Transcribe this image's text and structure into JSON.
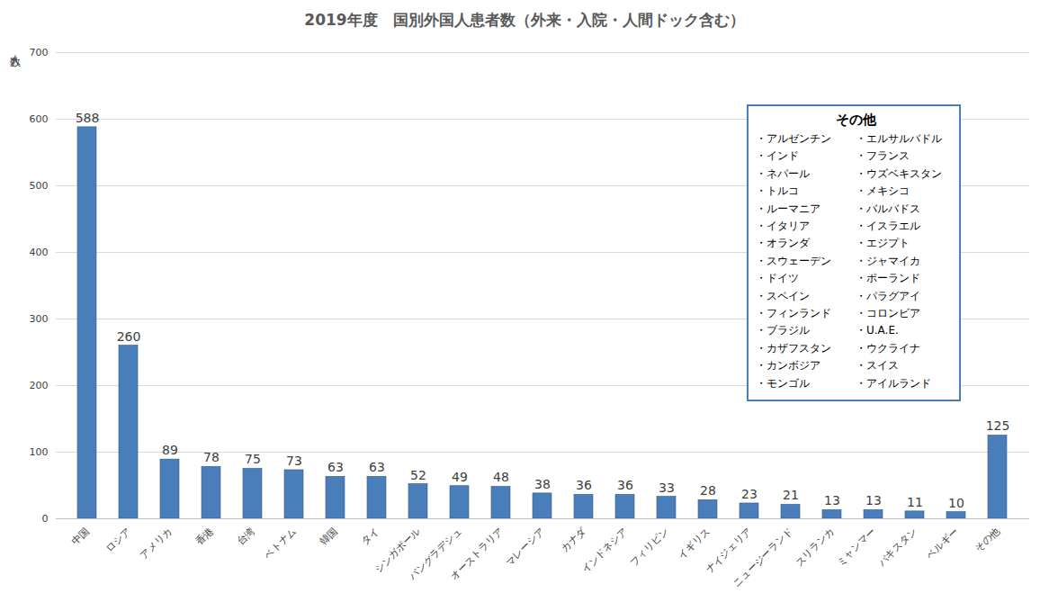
{
  "chart_data": {
    "type": "bar",
    "title": "2019年度　国別外国人患者数（外来・入院・人間ドック含む）",
    "y_label": "人数",
    "categories": [
      "中国",
      "ロシア",
      "アメリカ",
      "香港",
      "台湾",
      "ベトナム",
      "韓国",
      "タイ",
      "シンガポール",
      "バングラデシュ",
      "オーストラリア",
      "マレーシア",
      "カナダ",
      "インドネシア",
      "フィリピン",
      "イギリス",
      "ナイジェリア",
      "ニュージーランド",
      "スリランカ",
      "ミャンマー",
      "パキスタン",
      "ベルギー",
      "その他"
    ],
    "values": [
      588,
      260,
      89,
      78,
      75,
      73,
      63,
      63,
      52,
      49,
      48,
      38,
      36,
      36,
      33,
      28,
      23,
      21,
      13,
      13,
      11,
      10,
      125
    ],
    "color": "#4a7ebb",
    "ylim": [
      0,
      700
    ],
    "yticks": [
      0,
      100,
      200,
      300,
      400,
      500,
      600,
      700
    ],
    "grid": true,
    "data_labels": true,
    "annotation": {
      "title": "その他",
      "columns": [
        [
          "・アルゼンチン",
          "・インド",
          "・ネパール",
          "・トルコ",
          "・ルーマニア",
          "・イタリア",
          "・オランダ",
          "・スウェーデン",
          "・ドイツ",
          "・スペイン",
          "・フィンランド",
          "・ブラジル",
          "・カザフスタン",
          "・カンボジア",
          "・モンゴル"
        ],
        [
          "・エルサルバドル",
          "・フランス",
          "・ウズベキスタン",
          "・メキシコ",
          "・バルバドス",
          "・イスラエル",
          "・エジプト",
          "・ジャマイカ",
          "・ポーランド",
          "・パラグアイ",
          "・コロンビア",
          "・U.A.E.",
          "・ウクライナ",
          "・スイス",
          "・アイルランド"
        ]
      ]
    }
  }
}
